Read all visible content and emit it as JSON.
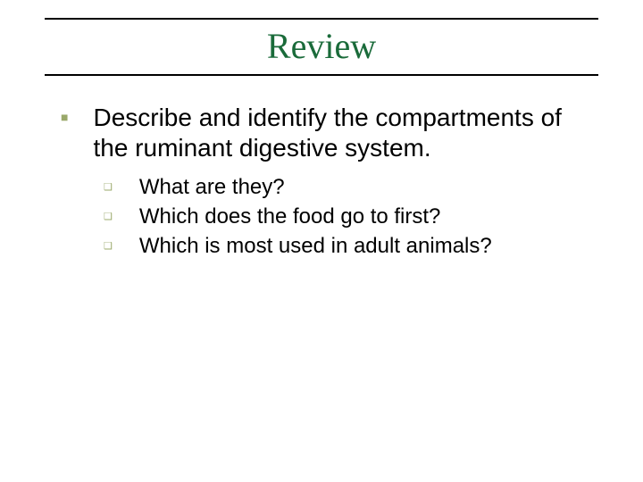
{
  "slide": {
    "title": "Review",
    "title_color": "#1a6b3a",
    "rule_color": "#000000",
    "background_color": "#ffffff",
    "bullet_l1_marker_color": "#9aa86a",
    "bullet_l2_marker_color": "#9aa86a",
    "title_fontsize": 40,
    "l1_fontsize": 28,
    "l2_fontsize": 24,
    "main_bullet": "Describe and identify the compartments of the ruminant digestive system.",
    "sub_bullets": [
      "What are they?",
      "Which does the food go to first?",
      "Which is most used in adult animals?"
    ]
  }
}
